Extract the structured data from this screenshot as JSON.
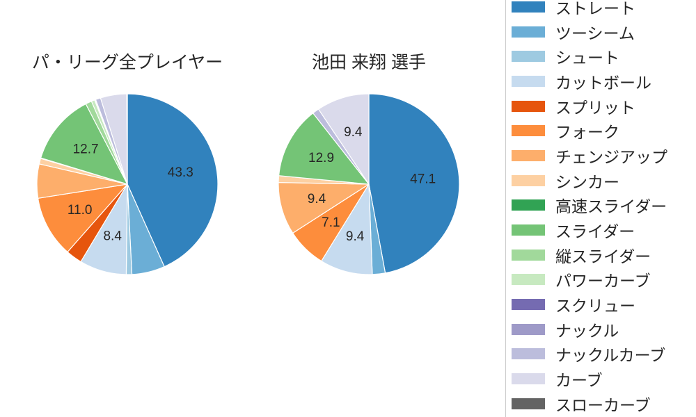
{
  "figure": {
    "background": "#ffffff",
    "text_color": "#262626",
    "wedge_edge_color": "#ffffff"
  },
  "chart_data": [
    {
      "type": "pie",
      "title": "パ・リーグ全プレイヤー",
      "values_are": "percent",
      "start_angle": "top",
      "direction": "clockwise",
      "label_min_percent": 7,
      "slices": [
        {
          "label": "ストレート",
          "value": 43.3,
          "color": "#3182bd"
        },
        {
          "label": "ツーシーム",
          "value": 5.9,
          "color": "#6baed6"
        },
        {
          "label": "シュート",
          "value": 1.0,
          "color": "#9ecae1"
        },
        {
          "label": "カットボール",
          "value": 8.4,
          "color": "#c6dbef"
        },
        {
          "label": "スプリット",
          "value": 2.9,
          "color": "#e6550d"
        },
        {
          "label": "フォーク",
          "value": 11.0,
          "color": "#fd8d3c"
        },
        {
          "label": "チェンジアップ",
          "value": 6.1,
          "color": "#fdae6b"
        },
        {
          "label": "シンカー",
          "value": 1.0,
          "color": "#fdd0a2"
        },
        {
          "label": "高速スライダー",
          "value": 0.1,
          "color": "#31a354"
        },
        {
          "label": "スライダー",
          "value": 12.7,
          "color": "#74c476"
        },
        {
          "label": "縦スライダー",
          "value": 1.1,
          "color": "#a1d99b"
        },
        {
          "label": "パワーカーブ",
          "value": 0.6,
          "color": "#c7e9c0"
        },
        {
          "label": "スクリュー",
          "value": 0.1,
          "color": "#756bb1"
        },
        {
          "label": "ナックル",
          "value": 0.1,
          "color": "#9e9ac8"
        },
        {
          "label": "ナックルカーブ",
          "value": 0.9,
          "color": "#bcbddc"
        },
        {
          "label": "カーブ",
          "value": 4.7,
          "color": "#dadaeb"
        },
        {
          "label": "スローカーブ",
          "value": 0.1,
          "color": "#636363"
        }
      ]
    },
    {
      "type": "pie",
      "title": "池田 来翔 選手",
      "values_are": "percent",
      "start_angle": "top",
      "direction": "clockwise",
      "label_min_percent": 7,
      "slices": [
        {
          "label": "ストレート",
          "value": 47.1,
          "color": "#3182bd"
        },
        {
          "label": "ツーシーム",
          "value": 2.3,
          "color": "#6baed6"
        },
        {
          "label": "カットボール",
          "value": 9.4,
          "color": "#c6dbef"
        },
        {
          "label": "フォーク",
          "value": 7.1,
          "color": "#fd8d3c"
        },
        {
          "label": "チェンジアップ",
          "value": 9.4,
          "color": "#fdae6b"
        },
        {
          "label": "シンカー",
          "value": 1.2,
          "color": "#fdd0a2"
        },
        {
          "label": "スライダー",
          "value": 12.9,
          "color": "#74c476"
        },
        {
          "label": "ナックルカーブ",
          "value": 1.2,
          "color": "#bcbddc"
        },
        {
          "label": "カーブ",
          "value": 9.4,
          "color": "#dadaeb"
        }
      ]
    }
  ],
  "legend": {
    "position": "right",
    "border_color": "#cccccc",
    "items": [
      {
        "label": "ストレート",
        "color": "#3182bd"
      },
      {
        "label": "ツーシーム",
        "color": "#6baed6"
      },
      {
        "label": "シュート",
        "color": "#9ecae1"
      },
      {
        "label": "カットボール",
        "color": "#c6dbef"
      },
      {
        "label": "スプリット",
        "color": "#e6550d"
      },
      {
        "label": "フォーク",
        "color": "#fd8d3c"
      },
      {
        "label": "チェンジアップ",
        "color": "#fdae6b"
      },
      {
        "label": "シンカー",
        "color": "#fdd0a2"
      },
      {
        "label": "高速スライダー",
        "color": "#31a354"
      },
      {
        "label": "スライダー",
        "color": "#74c476"
      },
      {
        "label": "縦スライダー",
        "color": "#a1d99b"
      },
      {
        "label": "パワーカーブ",
        "color": "#c7e9c0"
      },
      {
        "label": "スクリュー",
        "color": "#756bb1"
      },
      {
        "label": "ナックル",
        "color": "#9e9ac8"
      },
      {
        "label": "ナックルカーブ",
        "color": "#bcbddc"
      },
      {
        "label": "カーブ",
        "color": "#dadaeb"
      },
      {
        "label": "スローカーブ",
        "color": "#636363"
      }
    ]
  }
}
